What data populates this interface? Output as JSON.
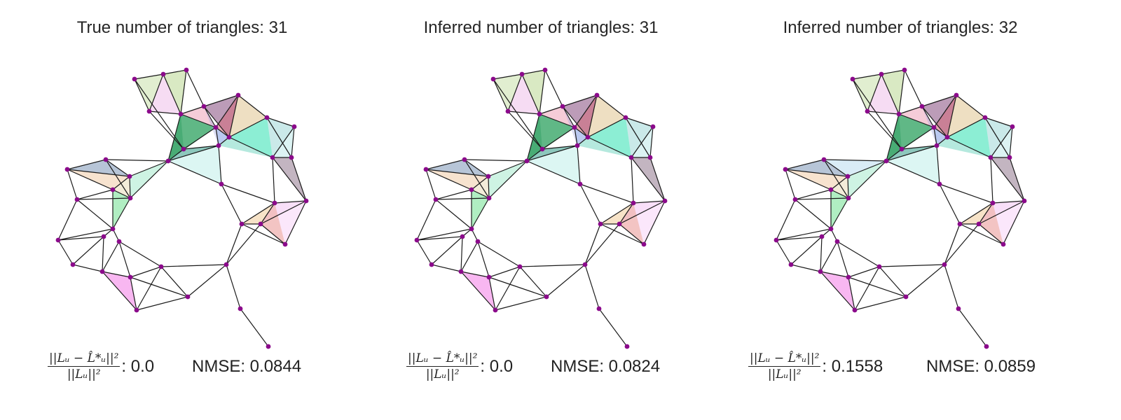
{
  "panels": [
    {
      "title": "True number of triangles: 31",
      "formula_num": "||Lᵤ − L̂*ᵤ||²",
      "formula_den": "||Lᵤ||²",
      "formula_value": ": 0.0",
      "nmse": "NMSE: 0.0844"
    },
    {
      "title": "Inferred number of triangles: 31",
      "formula_num": "||Lᵤ − L̂*ᵤ||²",
      "formula_den": "||Lᵤ||²",
      "formula_value": ": 0.0",
      "nmse": "NMSE: 0.0824"
    },
    {
      "title": "Inferred number of triangles: 32",
      "formula_num": "||Lᵤ − L̂*ᵤ||²",
      "formula_den": "||Lᵤ||²",
      "formula_value": ": 0.1558",
      "nmse": "NMSE: 0.0859"
    }
  ],
  "colors": {
    "node": "#8b0a8b",
    "edge": "#1a1a1a"
  }
}
